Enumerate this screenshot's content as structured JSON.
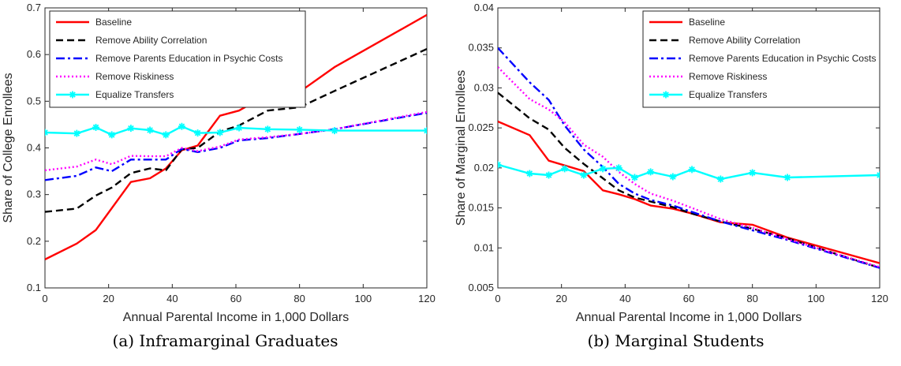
{
  "chart_data": [
    {
      "type": "line",
      "xlabel": "Annual Parental Income in 1,000 Dollars",
      "ylabel": "Share of College Enrollees",
      "caption": "(a) Inframarginal Graduates",
      "xlim": [
        0,
        120
      ],
      "ylim": [
        0.1,
        0.7
      ],
      "xticks": [
        0,
        20,
        40,
        60,
        80,
        100,
        120
      ],
      "xtick_labels": [
        "0",
        "20",
        "40",
        "60",
        "80",
        "100",
        "120"
      ],
      "yticks": [
        0.1,
        0.2,
        0.3,
        0.4,
        0.5,
        0.6,
        0.7
      ],
      "ytick_labels": [
        "0.1",
        "0.2",
        "0.3",
        "0.4",
        "0.5",
        "0.6",
        "0.7"
      ],
      "grid": false,
      "legend_position": "top-left",
      "series": [
        {
          "name": "Baseline",
          "color": "#ff0000",
          "dash": "solid",
          "marker": "none",
          "x": [
            0,
            10,
            16,
            27,
            33,
            38,
            43,
            48,
            55,
            61,
            70,
            80,
            91,
            120
          ],
          "y": [
            0.161,
            0.195,
            0.224,
            0.327,
            0.335,
            0.356,
            0.395,
            0.405,
            0.469,
            0.48,
            0.515,
            0.52,
            0.573,
            0.685
          ]
        },
        {
          "name": "Remove Ability Correlation",
          "color": "#000000",
          "dash": "dashed",
          "marker": "none",
          "x": [
            0,
            10,
            16,
            21,
            27,
            33,
            38,
            43,
            48,
            55,
            61,
            70,
            80,
            91,
            120
          ],
          "y": [
            0.263,
            0.27,
            0.298,
            0.315,
            0.346,
            0.356,
            0.352,
            0.397,
            0.4,
            0.435,
            0.448,
            0.48,
            0.487,
            0.522,
            0.612
          ]
        },
        {
          "name": "Remove Parents Education in Psychic Costs",
          "color": "#0000ff",
          "dash": "dashdot",
          "marker": "none",
          "x": [
            0,
            10,
            16,
            21,
            27,
            33,
            38,
            43,
            48,
            55,
            61,
            70,
            80,
            91,
            120
          ],
          "y": [
            0.331,
            0.34,
            0.358,
            0.35,
            0.375,
            0.375,
            0.375,
            0.398,
            0.391,
            0.4,
            0.416,
            0.421,
            0.43,
            0.44,
            0.475
          ]
        },
        {
          "name": "Remove Riskiness",
          "color": "#ff00ff",
          "dash": "dotted",
          "marker": "none",
          "x": [
            0,
            10,
            16,
            21,
            27,
            33,
            38,
            43,
            48,
            55,
            61,
            70,
            80,
            91,
            120
          ],
          "y": [
            0.352,
            0.36,
            0.375,
            0.365,
            0.383,
            0.382,
            0.382,
            0.4,
            0.393,
            0.403,
            0.418,
            0.423,
            0.43,
            0.44,
            0.477
          ]
        },
        {
          "name": "Equalize Transfers",
          "color": "#00ffff",
          "dash": "solid",
          "marker": "star",
          "x": [
            0,
            10,
            16,
            21,
            27,
            33,
            38,
            43,
            48,
            55,
            61,
            70,
            80,
            91,
            120
          ],
          "y": [
            0.433,
            0.431,
            0.444,
            0.428,
            0.442,
            0.438,
            0.428,
            0.446,
            0.432,
            0.433,
            0.443,
            0.44,
            0.439,
            0.437,
            0.437
          ]
        }
      ]
    },
    {
      "type": "line",
      "xlabel": "Annual Parental Income in 1,000 Dollars",
      "ylabel": "Share of Marginal Enrollees",
      "caption": "(b) Marginal Students",
      "xlim": [
        0,
        120
      ],
      "ylim": [
        0.005,
        0.04
      ],
      "xticks": [
        0,
        20,
        40,
        60,
        80,
        100,
        120
      ],
      "xtick_labels": [
        "0",
        "20",
        "40",
        "60",
        "80",
        "100",
        "120"
      ],
      "yticks": [
        0.005,
        0.01,
        0.015,
        0.02,
        0.025,
        0.03,
        0.035,
        0.04
      ],
      "ytick_labels": [
        "0.005",
        "0.01",
        "0.015",
        "0.02",
        "0.025",
        "0.03",
        "0.035",
        "0.04"
      ],
      "grid": false,
      "legend_position": "top-right",
      "series": [
        {
          "name": "Baseline",
          "color": "#ff0000",
          "dash": "solid",
          "marker": "none",
          "x": [
            0,
            10,
            16,
            27,
            33,
            38,
            43,
            48,
            55,
            61,
            70,
            80,
            91,
            120
          ],
          "y": [
            0.0258,
            0.0241,
            0.0209,
            0.0196,
            0.0172,
            0.0167,
            0.0161,
            0.0153,
            0.0149,
            0.0143,
            0.0132,
            0.0129,
            0.0113,
            0.0081
          ]
        },
        {
          "name": "Remove Ability Correlation",
          "color": "#000000",
          "dash": "dashed",
          "marker": "none",
          "x": [
            0,
            10,
            16,
            21,
            27,
            33,
            38,
            43,
            48,
            55,
            61,
            70,
            80,
            91,
            120
          ],
          "y": [
            0.0294,
            0.0262,
            0.0248,
            0.0225,
            0.0205,
            0.0187,
            0.0172,
            0.0163,
            0.0158,
            0.0151,
            0.0143,
            0.0133,
            0.0124,
            0.0112,
            0.0075
          ]
        },
        {
          "name": "Remove Parents Education in Psychic Costs",
          "color": "#0000ff",
          "dash": "dashdot",
          "marker": "none",
          "x": [
            0,
            10,
            16,
            21,
            27,
            33,
            38,
            43,
            48,
            55,
            61,
            70,
            80,
            91,
            120
          ],
          "y": [
            0.035,
            0.0307,
            0.0285,
            0.0253,
            0.0223,
            0.0201,
            0.018,
            0.0168,
            0.016,
            0.0153,
            0.0145,
            0.0133,
            0.0122,
            0.011,
            0.0075
          ]
        },
        {
          "name": "Remove Riskiness",
          "color": "#ff00ff",
          "dash": "dotted",
          "marker": "none",
          "x": [
            0,
            10,
            16,
            21,
            27,
            33,
            38,
            43,
            48,
            55,
            61,
            70,
            80,
            91,
            120
          ],
          "y": [
            0.0326,
            0.0286,
            0.0273,
            0.0257,
            0.0229,
            0.0214,
            0.0195,
            0.018,
            0.0168,
            0.0159,
            0.015,
            0.0136,
            0.0125,
            0.0111,
            0.0076
          ]
        },
        {
          "name": "Equalize Transfers",
          "color": "#00ffff",
          "dash": "solid",
          "marker": "star",
          "x": [
            0,
            10,
            16,
            21,
            27,
            33,
            38,
            43,
            48,
            55,
            61,
            70,
            80,
            91,
            120
          ],
          "y": [
            0.0204,
            0.0193,
            0.0191,
            0.0199,
            0.0191,
            0.0199,
            0.02,
            0.0188,
            0.0195,
            0.0189,
            0.0198,
            0.0186,
            0.0194,
            0.0188,
            0.0191
          ]
        }
      ]
    }
  ]
}
